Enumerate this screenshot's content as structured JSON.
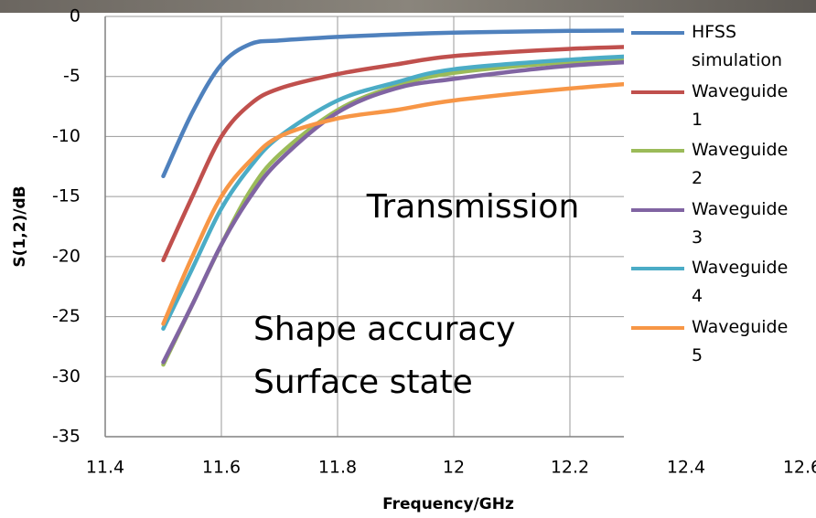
{
  "chart_data": {
    "type": "line",
    "x_label": "Frequency/GHz",
    "y_label": "S(1,2)/dB",
    "x": [
      11.5,
      11.55,
      11.6,
      11.65,
      11.7,
      11.8,
      11.9,
      12.0,
      12.2,
      12.4,
      12.6
    ],
    "series": [
      {
        "name": "HFSS simulation",
        "color": "#4f81bd",
        "values": [
          -13.3,
          -8,
          -4,
          -2.3,
          -2.0,
          -1.7,
          -1.5,
          -1.35,
          -1.2,
          -1.15,
          -1.1
        ]
      },
      {
        "name": "Waveguide 1",
        "color": "#c0504d",
        "values": [
          -20.3,
          -15,
          -10,
          -7.3,
          -6,
          -4.8,
          -4,
          -3.3,
          -2.7,
          -2.4,
          -2.2
        ]
      },
      {
        "name": "Waveguide 2",
        "color": "#9bbb59",
        "values": [
          -29,
          -24,
          -19,
          -14.5,
          -11.5,
          -7.8,
          -5.8,
          -4.7,
          -3.8,
          -3.3,
          -3.0
        ]
      },
      {
        "name": "Waveguide 3",
        "color": "#8064a2",
        "values": [
          -28.8,
          -24,
          -19,
          -15,
          -12,
          -8,
          -6,
          -5.2,
          -4.1,
          -3.6,
          -3.3
        ]
      },
      {
        "name": "Waveguide 4",
        "color": "#4bacc6",
        "values": [
          -26,
          -21,
          -16,
          -12.5,
          -10,
          -7,
          -5.5,
          -4.4,
          -3.6,
          -3.1,
          -2.8
        ]
      },
      {
        "name": "Waveguide 5",
        "color": "#f79646",
        "values": [
          -25.6,
          -20,
          -15,
          -12,
          -10,
          -8.5,
          -7.8,
          -7,
          -6,
          -5.3,
          -4.8
        ]
      }
    ],
    "xlim": [
      11.4,
      12.6
    ],
    "xticks": [
      11.4,
      11.6,
      11.8,
      12,
      12.2,
      12.4,
      12.6
    ],
    "ylim": [
      -35,
      0
    ],
    "yticks": [
      -35,
      -30,
      -25,
      -20,
      -15,
      -10,
      -5,
      0
    ],
    "grid": true,
    "annotations": [
      "Transmission",
      "Shape accuracy",
      "Surface state"
    ]
  }
}
